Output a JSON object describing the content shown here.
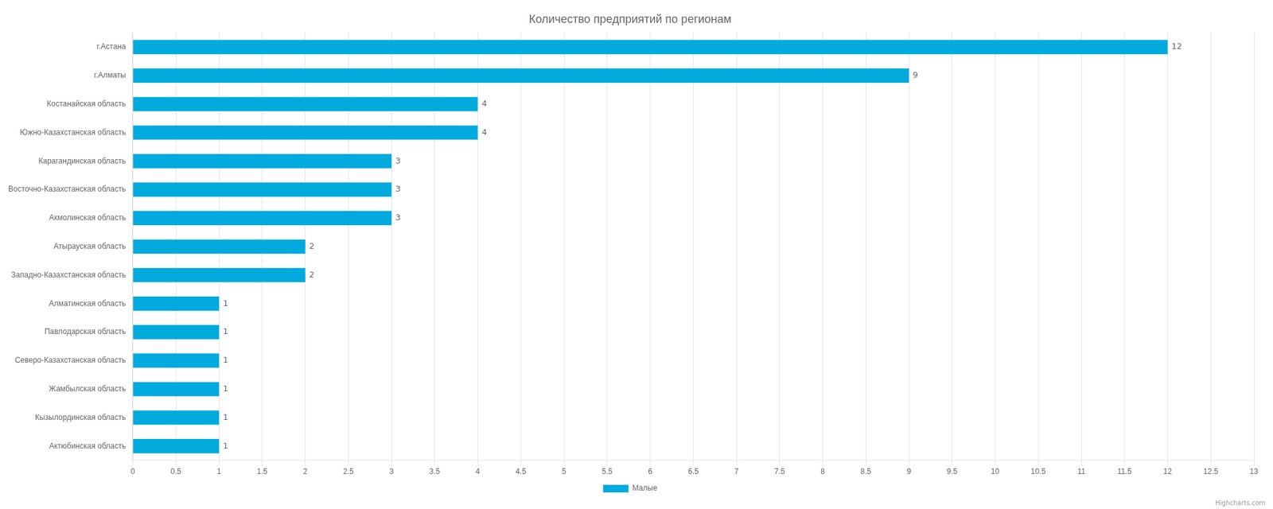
{
  "chart_data": {
    "type": "bar",
    "orientation": "horizontal",
    "title": "Количество предприятий по регионам",
    "categories": [
      "г.Астана",
      "г.Алматы",
      "Костанайская область",
      "Южно-Казахстанская область",
      "Карагандинская область",
      "Восточно-Казахстанская область",
      "Акмолинская область",
      "Атырауская область",
      "Западно-Казахстанская область",
      "Алматинская область",
      "Павлодарская область",
      "Северо-Казахстанская область",
      "Жамбылская область",
      "Кызылординская область",
      "Актюбинская область"
    ],
    "series": [
      {
        "name": "Малые",
        "color": "#00AADD",
        "values": [
          12,
          9,
          4,
          4,
          3,
          3,
          3,
          2,
          2,
          1,
          1,
          1,
          1,
          1,
          1
        ]
      }
    ],
    "xlim": [
      0,
      13
    ],
    "xticks": [
      0,
      0.5,
      1,
      1.5,
      2,
      2.5,
      3,
      3.5,
      4,
      4.5,
      5,
      5.5,
      6,
      6.5,
      7,
      7.5,
      8,
      8.5,
      9,
      9.5,
      10,
      10.5,
      11,
      11.5,
      12,
      12.5,
      13
    ],
    "grid": true,
    "data_labels": true,
    "legend": "bottom",
    "annotations": [
      "Highcharts.com"
    ]
  }
}
